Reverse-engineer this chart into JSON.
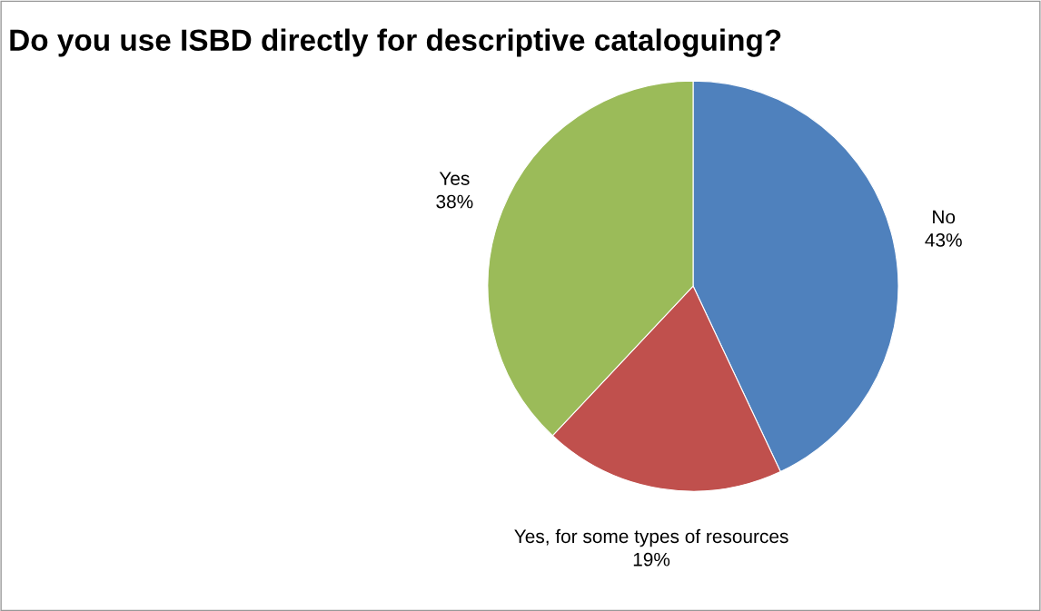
{
  "chart_data": {
    "type": "pie",
    "title": "Do you use ISBD directly for descriptive cataloguing?",
    "categories": [
      "No",
      "Yes, for some types of resources",
      "Yes"
    ],
    "values": [
      43,
      19,
      38
    ],
    "colors": [
      "#4f81bd",
      "#c0504d",
      "#9bbb59"
    ],
    "value_labels": [
      "43%",
      "19%",
      "38%"
    ],
    "legend": false
  }
}
